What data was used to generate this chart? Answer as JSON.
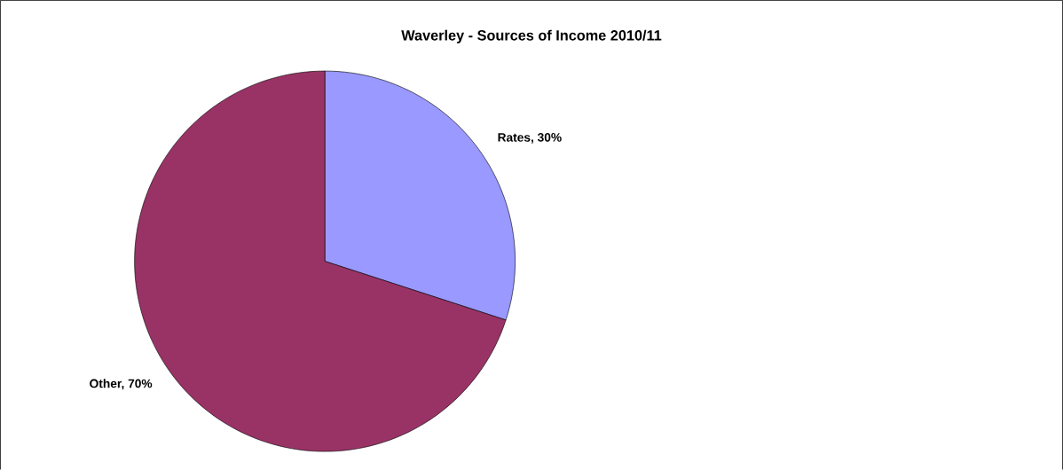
{
  "chart_data": {
    "type": "pie",
    "title": "Waverley - Sources of Income 2010/11",
    "categories": [
      "Rates, 30%",
      "Other, 70%"
    ],
    "values": [
      30,
      70
    ],
    "colors": [
      "#9999ff",
      "#993366"
    ]
  }
}
